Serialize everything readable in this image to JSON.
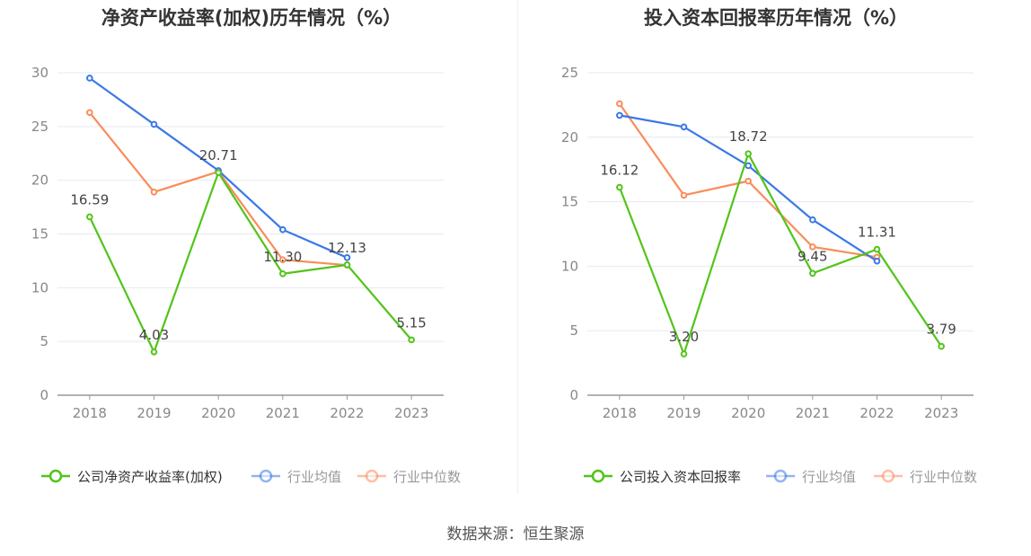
{
  "source": "数据来源：恒生聚源",
  "chart_data": [
    {
      "type": "line",
      "title": "净资产收益率(加权)历年情况（%）",
      "categories": [
        "2018",
        "2019",
        "2020",
        "2021",
        "2022",
        "2023"
      ],
      "ylim": [
        0,
        30
      ],
      "yticks": [
        0,
        5,
        10,
        15,
        20,
        25,
        30
      ],
      "grid": true,
      "legend_position": "bottom",
      "series": [
        {
          "name": "公司净资产收益率(加权)",
          "color": "#52c41a",
          "values": [
            16.59,
            4.03,
            20.71,
            11.3,
            12.13,
            5.15
          ],
          "labels": [
            "16.59",
            "4.03",
            "20.71",
            "11.30",
            "12.13",
            "5.15"
          ]
        },
        {
          "name": "行业均值",
          "color": "#3b78e7",
          "values": [
            29.5,
            25.2,
            20.9,
            15.4,
            12.8,
            null
          ]
        },
        {
          "name": "行业中位数",
          "color": "#fa8c5a",
          "values": [
            26.3,
            18.9,
            20.8,
            12.6,
            12.1,
            null
          ]
        }
      ]
    },
    {
      "type": "line",
      "title": "投入资本回报率历年情况（%）",
      "categories": [
        "2018",
        "2019",
        "2020",
        "2021",
        "2022",
        "2023"
      ],
      "ylim": [
        0,
        25
      ],
      "yticks": [
        0,
        5,
        10,
        15,
        20,
        25
      ],
      "grid": true,
      "legend_position": "bottom",
      "series": [
        {
          "name": "公司投入资本回报率",
          "color": "#52c41a",
          "values": [
            16.12,
            3.2,
            18.72,
            9.45,
            11.31,
            3.79
          ],
          "labels": [
            "16.12",
            "3.20",
            "18.72",
            "9.45",
            "11.31",
            "3.79"
          ]
        },
        {
          "name": "行业均值",
          "color": "#3b78e7",
          "values": [
            21.7,
            20.8,
            17.8,
            13.6,
            10.4,
            null
          ]
        },
        {
          "name": "行业中位数",
          "color": "#fa8c5a",
          "values": [
            22.6,
            15.5,
            16.6,
            11.5,
            10.7,
            null
          ]
        }
      ]
    }
  ]
}
